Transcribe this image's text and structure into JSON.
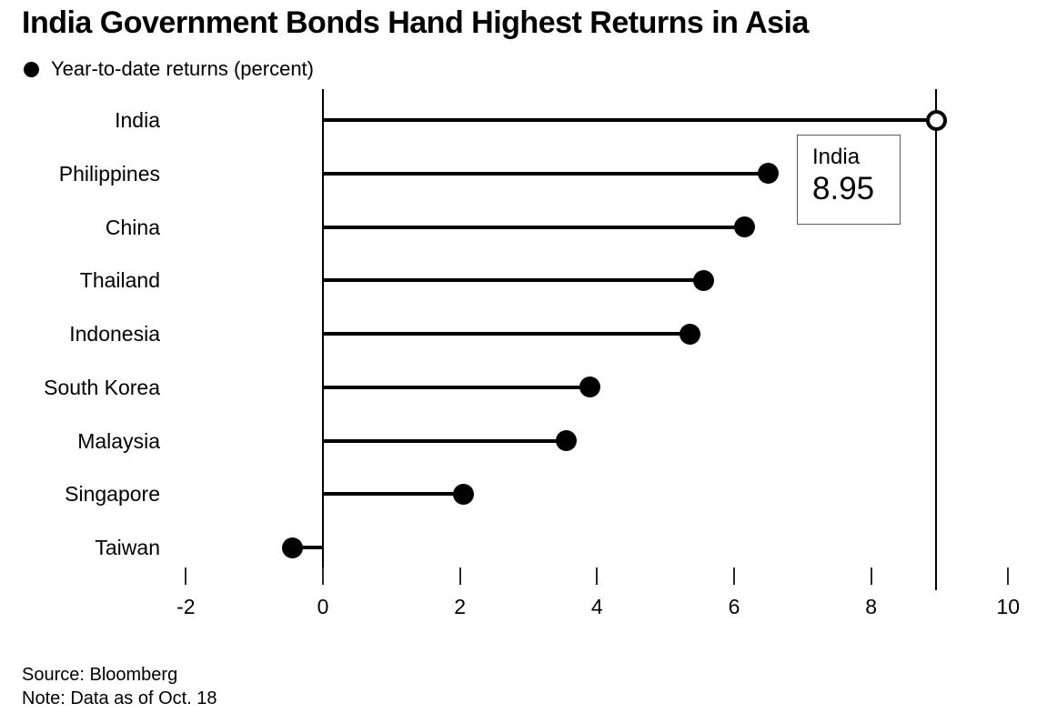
{
  "title": "India Government Bonds Hand Highest Returns in Asia",
  "legend": {
    "label": "Year-to-date returns (percent)",
    "marker": "filled-circle-icon"
  },
  "footer": {
    "source": "Source: Bloomberg",
    "note": "Note: Data as of Oct. 18"
  },
  "colors": {
    "foreground": "#000000",
    "background": "#ffffff",
    "tooltip_border": "#5a5a5a"
  },
  "chart_data": {
    "type": "bar",
    "subtype": "horizontal-lollipop",
    "title": "India Government Bonds Hand Highest Returns in Asia",
    "series_label": "Year-to-date returns (percent)",
    "categories": [
      "India",
      "Philippines",
      "China",
      "Thailand",
      "Indonesia",
      "South Korea",
      "Malaysia",
      "Singapore",
      "Taiwan"
    ],
    "values": [
      8.95,
      6.5,
      6.15,
      5.55,
      5.35,
      3.9,
      3.55,
      2.05,
      -0.45
    ],
    "highlight_index": 0,
    "highlight_marker": "open-circle",
    "default_marker": "filled-circle",
    "x_ticks": [
      -2,
      0,
      2,
      4,
      6,
      8,
      10
    ],
    "x_tick_labels": [
      "-2",
      "0",
      "2",
      "4",
      "6",
      "8",
      "10"
    ],
    "xlim": [
      -2.5,
      10.5
    ],
    "grid": false,
    "legend_position": "top-left",
    "crosshair_x": 8.95,
    "tooltip": {
      "label": "India",
      "value": "8.95"
    }
  }
}
